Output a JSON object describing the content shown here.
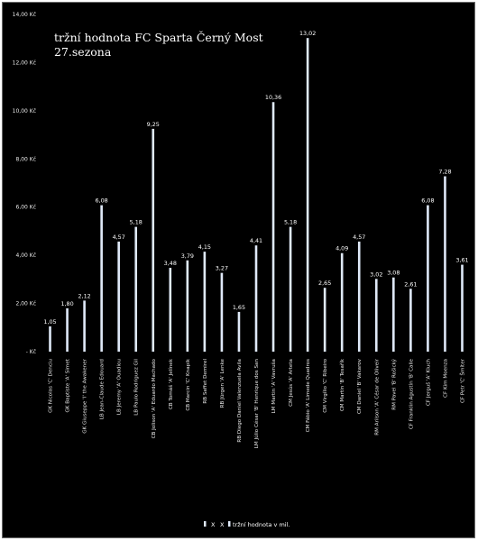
{
  "chart_data": {
    "type": "bar",
    "title": "tržní hodnota FC Sparta Černý Most",
    "subtitle": "27.sezona",
    "xlabel": "",
    "ylabel": "",
    "ylim": [
      0,
      14
    ],
    "y_ticks": [
      "-  Kč",
      "2,00 Kč",
      "4,00 Kč",
      "6,00 Kč",
      "8,00 Kč",
      "10,00 Kč",
      "12,00 Kč",
      "14,00 Kč"
    ],
    "grid": false,
    "legend_position": "bottom",
    "legend_markers": [
      "X",
      "X"
    ],
    "bar_color": "#dfe9f8",
    "background_color": "#000000",
    "categories": [
      "GK Nicolas 'C' Denciu",
      "GK Baptiste 'A' Simet",
      "GK Giuseppe 'I' the Awakener",
      "LB Jean-Claude Edouard",
      "LB Jeremy 'A' Ouadiou",
      "LB Paulo Rodriguez Gil",
      "CB Jolison 'A' Eduardo Machado",
      "CB Tomáš 'A' Jelínek",
      "CB Marcin 'C' Knapik",
      "RB Saffet Demirel",
      "RB Jürgen 'A' Lenke",
      "RB Diego Daniel Valenzuela Avila",
      "LM Júlio César 'B' Henrique dos San",
      "LM Martin 'A' Vavruša",
      "CM Jesús 'A' Arteta",
      "CM Fábio 'A' Limede Quadros",
      "CM Virgílio 'C' Ribeiro",
      "CM Martin 'B' Tesařík",
      "CM Daniel 'B' Vakarov",
      "RM Arilson 'A' César de Oliveir",
      "RM Pavel 'B' Rošický",
      "CF Franklin Agustín 'B' Calle",
      "CF Jerguš 'A' Kluch",
      "CF Kim Moenza",
      "CF Petr 'C' Šmíter"
    ],
    "series": [
      {
        "name": "tržní hodnota v mil.",
        "values": [
          1.05,
          1.8,
          2.12,
          6.08,
          4.57,
          5.18,
          9.25,
          3.48,
          3.79,
          4.15,
          3.27,
          1.65,
          4.41,
          10.36,
          5.18,
          13.02,
          2.65,
          4.09,
          4.57,
          3.02,
          3.08,
          2.61,
          6.08,
          7.28,
          3.61
        ],
        "data_labels": [
          "1,05",
          "1,80",
          "2,12",
          "6,08",
          "4,57",
          "5,18",
          "9,25",
          "3,48",
          "3,79",
          "4,15",
          "3,27",
          "1,65",
          "4,41",
          "10,36",
          "5,18",
          "13,02",
          "2,65",
          "4,09",
          "4,57",
          "3,02",
          "3,08",
          "2,61",
          "6,08",
          "7,28",
          "3,61"
        ]
      }
    ]
  }
}
